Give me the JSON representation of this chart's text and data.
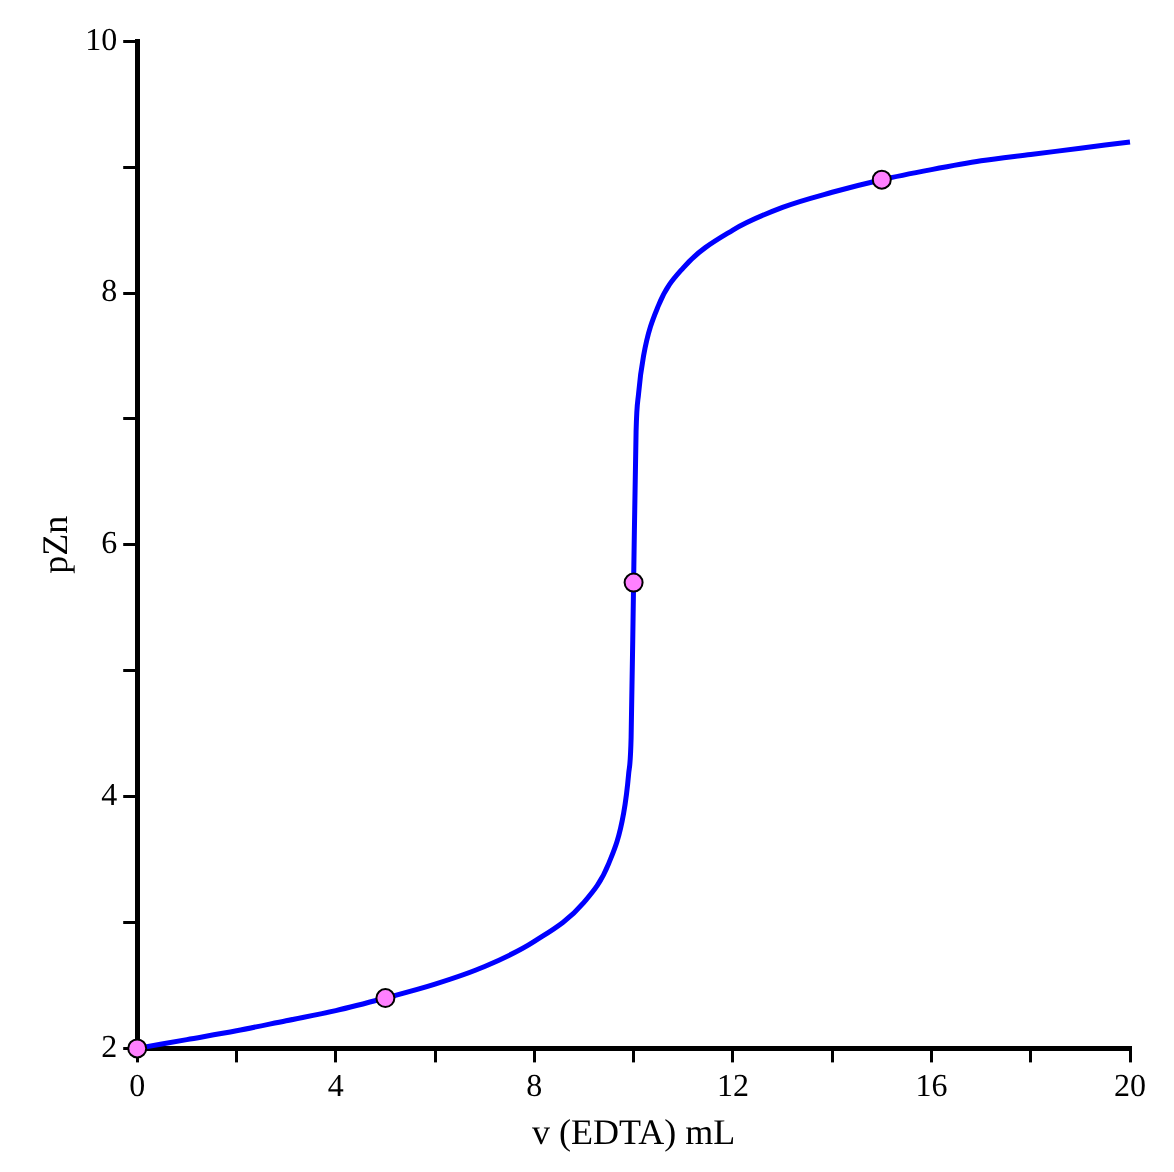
{
  "chart_data": {
    "type": "line",
    "xlabel": "v (EDTA) mL",
    "ylabel": "pZn",
    "xlim": [
      0,
      20
    ],
    "ylim": [
      2,
      10
    ],
    "xticks": [
      0,
      {
        "value": 2,
        "label": null
      },
      4,
      {
        "value": 6,
        "label": null
      },
      8,
      {
        "value": 10,
        "label": null
      },
      12,
      {
        "value": 14,
        "label": null
      },
      16,
      {
        "value": 18,
        "label": null
      },
      20
    ],
    "yticks": [
      2,
      {
        "value": 3,
        "label": null
      },
      4,
      {
        "value": 5,
        "label": null
      },
      6,
      {
        "value": 7,
        "label": null
      },
      8,
      {
        "value": 9,
        "label": null
      },
      10
    ],
    "grid": false,
    "legend": false,
    "series": [
      {
        "type": "line",
        "color": "#0000ff",
        "marker": "none",
        "line_style": "solid",
        "x": [
          0,
          1,
          2,
          3,
          4,
          5,
          6,
          7,
          8,
          9,
          9.5,
          9.8,
          9.9,
          9.95,
          10,
          10.05,
          10.1,
          10.2,
          10.5,
          11,
          12,
          13,
          14,
          15,
          16,
          17,
          18,
          19,
          20
        ],
        "values": [
          2.0,
          2.07,
          2.14,
          2.22,
          2.3,
          2.4,
          2.51,
          2.65,
          2.85,
          3.16,
          3.47,
          3.87,
          4.18,
          4.47,
          5.7,
          6.9,
          7.2,
          7.5,
          7.9,
          8.2,
          8.5,
          8.68,
          8.8,
          8.9,
          8.98,
          9.05,
          9.1,
          9.15,
          9.2
        ]
      },
      {
        "type": "scatter",
        "color": "#ff80ff",
        "marker": "circle",
        "x": [
          0,
          5,
          10,
          15
        ],
        "values": [
          2.0,
          2.4,
          5.7,
          8.9
        ]
      }
    ]
  }
}
